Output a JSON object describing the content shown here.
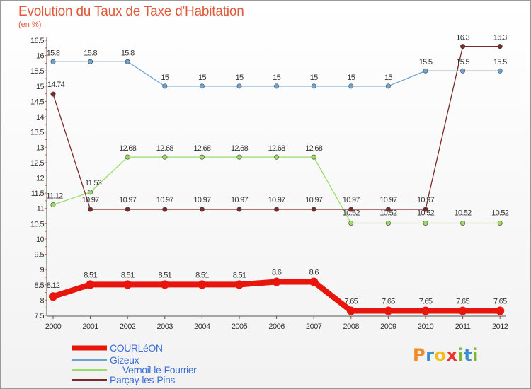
{
  "header": {
    "title": "Evolution du Taux de Taxe d'Habitation",
    "subtitle": "(en %)"
  },
  "brand": {
    "letters": [
      "P",
      "r",
      "o",
      "x",
      "i",
      "t",
      "i"
    ],
    "colors": [
      "#f08a24",
      "#3c8fd0",
      "#f0c020",
      "#e8342c",
      "#7ab82c",
      "#3c8fd0",
      "#7ab82c"
    ]
  },
  "chart_data": {
    "type": "line",
    "title": "Evolution du Taux de Taxe d'Habitation",
    "ylabel": "(en %)",
    "xlabel": "",
    "ylim": [
      7.5,
      16.5
    ],
    "y_ticks": [
      "7.5",
      "8",
      "8.5",
      "9",
      "9.5",
      "10",
      "10.5",
      "11",
      "11.5",
      "12",
      "12.5",
      "13",
      "13.5",
      "14",
      "14.5",
      "15",
      "15.5",
      "16",
      "16.5"
    ],
    "x": [
      "2000",
      "2001",
      "2002",
      "2003",
      "2004",
      "2005",
      "2006",
      "2007",
      "2008",
      "2009",
      "2010",
      "2011",
      "2012"
    ],
    "grid": false,
    "legend_position": "bottom-left",
    "series": [
      {
        "name": "COURLéON",
        "color": "#e8150c",
        "values": [
          8.12,
          8.51,
          8.51,
          8.51,
          8.51,
          8.51,
          8.6,
          8.6,
          7.65,
          7.65,
          7.65,
          7.65,
          7.65
        ],
        "labels": [
          "8.12",
          "8.51",
          "8.51",
          "8.51",
          "8.51",
          "8.51",
          "8.6",
          "8.6",
          "7.65",
          "7.65",
          "7.65",
          "7.65",
          "7.65"
        ]
      },
      {
        "name": "Gizeux",
        "color": "#6ea3d0",
        "values": [
          15.8,
          15.8,
          15.8,
          15,
          15,
          15,
          15,
          15,
          15,
          15,
          15.5,
          15.5,
          15.5
        ],
        "labels": [
          "15.8",
          "15.8",
          "15.8",
          "15",
          "15",
          "15",
          "15",
          "15",
          "15",
          "15",
          "15.5",
          "15.5",
          "15.5"
        ]
      },
      {
        "name": "Vernoil-le-Fourrier",
        "color": "#99dd66",
        "values": [
          11.12,
          11.53,
          12.68,
          12.68,
          12.68,
          12.68,
          12.68,
          12.68,
          10.52,
          10.52,
          10.52,
          10.52,
          10.52
        ],
        "labels": [
          "11.12",
          "11.53",
          "12.68",
          "12.68",
          "12.68",
          "12.68",
          "12.68",
          "12.68",
          "10.52",
          "10.52",
          "10.52",
          "10.52",
          "10.52"
        ]
      },
      {
        "name": "Parçay-les-Pins",
        "color": "#7a2a2a",
        "values": [
          14.74,
          10.97,
          10.97,
          10.97,
          10.97,
          10.97,
          10.97,
          10.97,
          10.97,
          10.97,
          10.97,
          16.3,
          16.3
        ],
        "labels": [
          "14.74",
          "10.97",
          "10.97",
          "10.97",
          "10.97",
          "10.97",
          "10.97",
          "10.97",
          "10.97",
          "10.97",
          "10.97",
          "16.3",
          "16.3"
        ]
      }
    ]
  }
}
